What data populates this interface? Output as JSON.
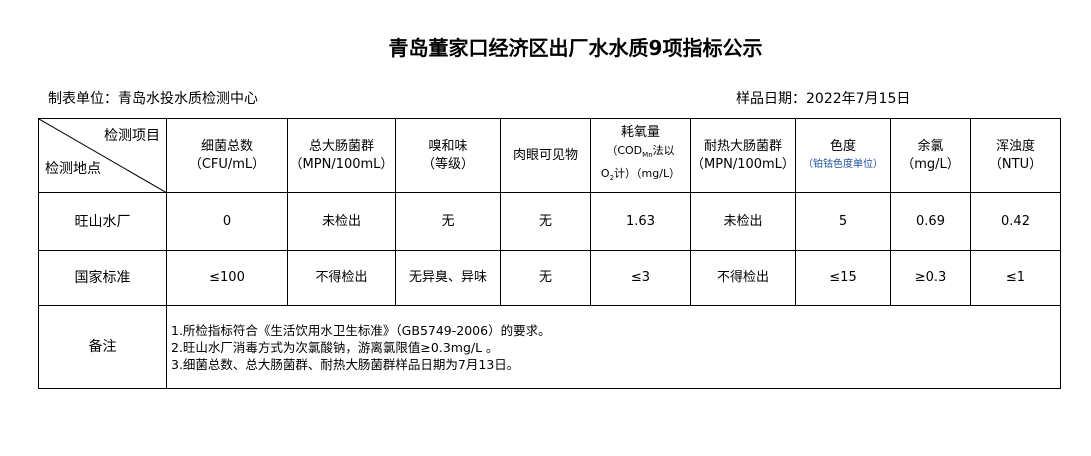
{
  "title": "青岛董家口经济区出厂水水质9项指标公示",
  "unit": "制表单位：青岛水投水质检测中心",
  "date": "样品日期：2022年7月15日",
  "corner": {
    "top": "检测项目",
    "bottom": "检测地点"
  },
  "headers": [
    {
      "name": "细菌总数",
      "unit": "（CFU/mL）"
    },
    {
      "name": "总大肠菌群",
      "unit": "（MPN/100mL）"
    },
    {
      "name": "嗅和味",
      "unit": "（等级）"
    },
    {
      "name": "肉眼可见物",
      "unit": ""
    },
    {
      "name": "耗氧量",
      "unit_a": "（COD",
      "unit_sub": "Mn",
      "unit_b": "法以",
      "unit_c": "O",
      "unit_sub2": "2",
      "unit_d": "计）（mg/L）"
    },
    {
      "name": "耐热大肠菌群",
      "unit": "（MPN/100mL）"
    },
    {
      "name": "色度",
      "unit": "（铂钴色度单位）"
    },
    {
      "name": "余氯",
      "unit": "（mg/L）"
    },
    {
      "name": "浑浊度",
      "unit": "（NTU）"
    }
  ],
  "rows": [
    {
      "label": "旺山水厂",
      "values": [
        "0",
        "未检出",
        "无",
        "无",
        "1.63",
        "未检出",
        "5",
        "0.69",
        "0.42"
      ]
    },
    {
      "label": "国家标准",
      "values": [
        "≤100",
        "不得检出",
        "无异臭、异味",
        "无",
        "≤3",
        "不得检出",
        "≤15",
        "≥0.3",
        "≤1"
      ]
    }
  ],
  "notes": {
    "label": "备注",
    "lines": [
      "1.所检指标符合《生活饮用水卫生标准》（GB5749-2006）的要求。",
      "2.旺山水厂消毒方式为次氯酸钠，游离氯限值≥0.3mg/L 。",
      "3.细菌总数、总大肠菌群、耐热大肠菌群样品日期为7月13日。"
    ]
  }
}
